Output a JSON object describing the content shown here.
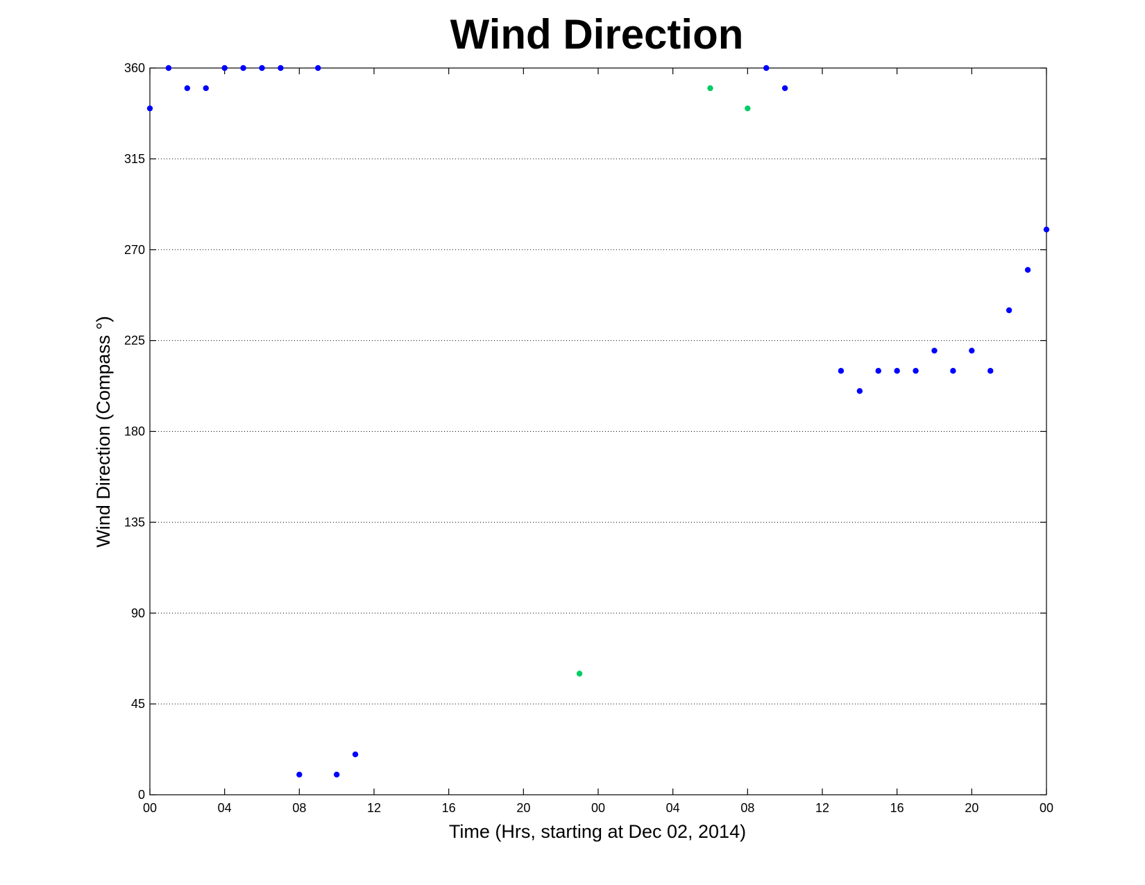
{
  "chart_data": {
    "type": "scatter",
    "title": "Wind Direction",
    "xlabel": "Time (Hrs, starting at Dec 02, 2014)",
    "ylabel": "Wind Direction (Compass  °)",
    "xlim": [
      0,
      48
    ],
    "ylim": [
      0,
      360
    ],
    "grid": "horizontal dotted",
    "x_ticks": [
      {
        "value": 0,
        "label": "00"
      },
      {
        "value": 4,
        "label": "04"
      },
      {
        "value": 8,
        "label": "08"
      },
      {
        "value": 12,
        "label": "12"
      },
      {
        "value": 16,
        "label": "16"
      },
      {
        "value": 20,
        "label": "20"
      },
      {
        "value": 24,
        "label": "00"
      },
      {
        "value": 28,
        "label": "04"
      },
      {
        "value": 32,
        "label": "08"
      },
      {
        "value": 36,
        "label": "12"
      },
      {
        "value": 40,
        "label": "16"
      },
      {
        "value": 44,
        "label": "20"
      },
      {
        "value": 48,
        "label": "00"
      }
    ],
    "y_ticks": [
      {
        "value": 0,
        "label": "0"
      },
      {
        "value": 45,
        "label": "45"
      },
      {
        "value": 90,
        "label": "90"
      },
      {
        "value": 135,
        "label": "135"
      },
      {
        "value": 180,
        "label": "180"
      },
      {
        "value": 225,
        "label": "225"
      },
      {
        "value": 270,
        "label": "270"
      },
      {
        "value": 315,
        "label": "315"
      },
      {
        "value": 360,
        "label": "360"
      }
    ],
    "series": [
      {
        "color": "#0000ff",
        "x": [
          0,
          1,
          2,
          3,
          4,
          5,
          6,
          7,
          8,
          9,
          10,
          11,
          33,
          34,
          37,
          38,
          39,
          40,
          41,
          42,
          43,
          44,
          45,
          46,
          47,
          48
        ],
        "y": [
          340,
          360,
          350,
          350,
          360,
          360,
          360,
          360,
          10,
          360,
          10,
          20,
          360,
          350,
          210,
          200,
          210,
          210,
          210,
          220,
          210,
          220,
          210,
          240,
          260,
          280
        ]
      },
      {
        "color": "#00cc66",
        "x": [
          23,
          30,
          32
        ],
        "y": [
          60,
          350,
          340
        ]
      }
    ]
  }
}
